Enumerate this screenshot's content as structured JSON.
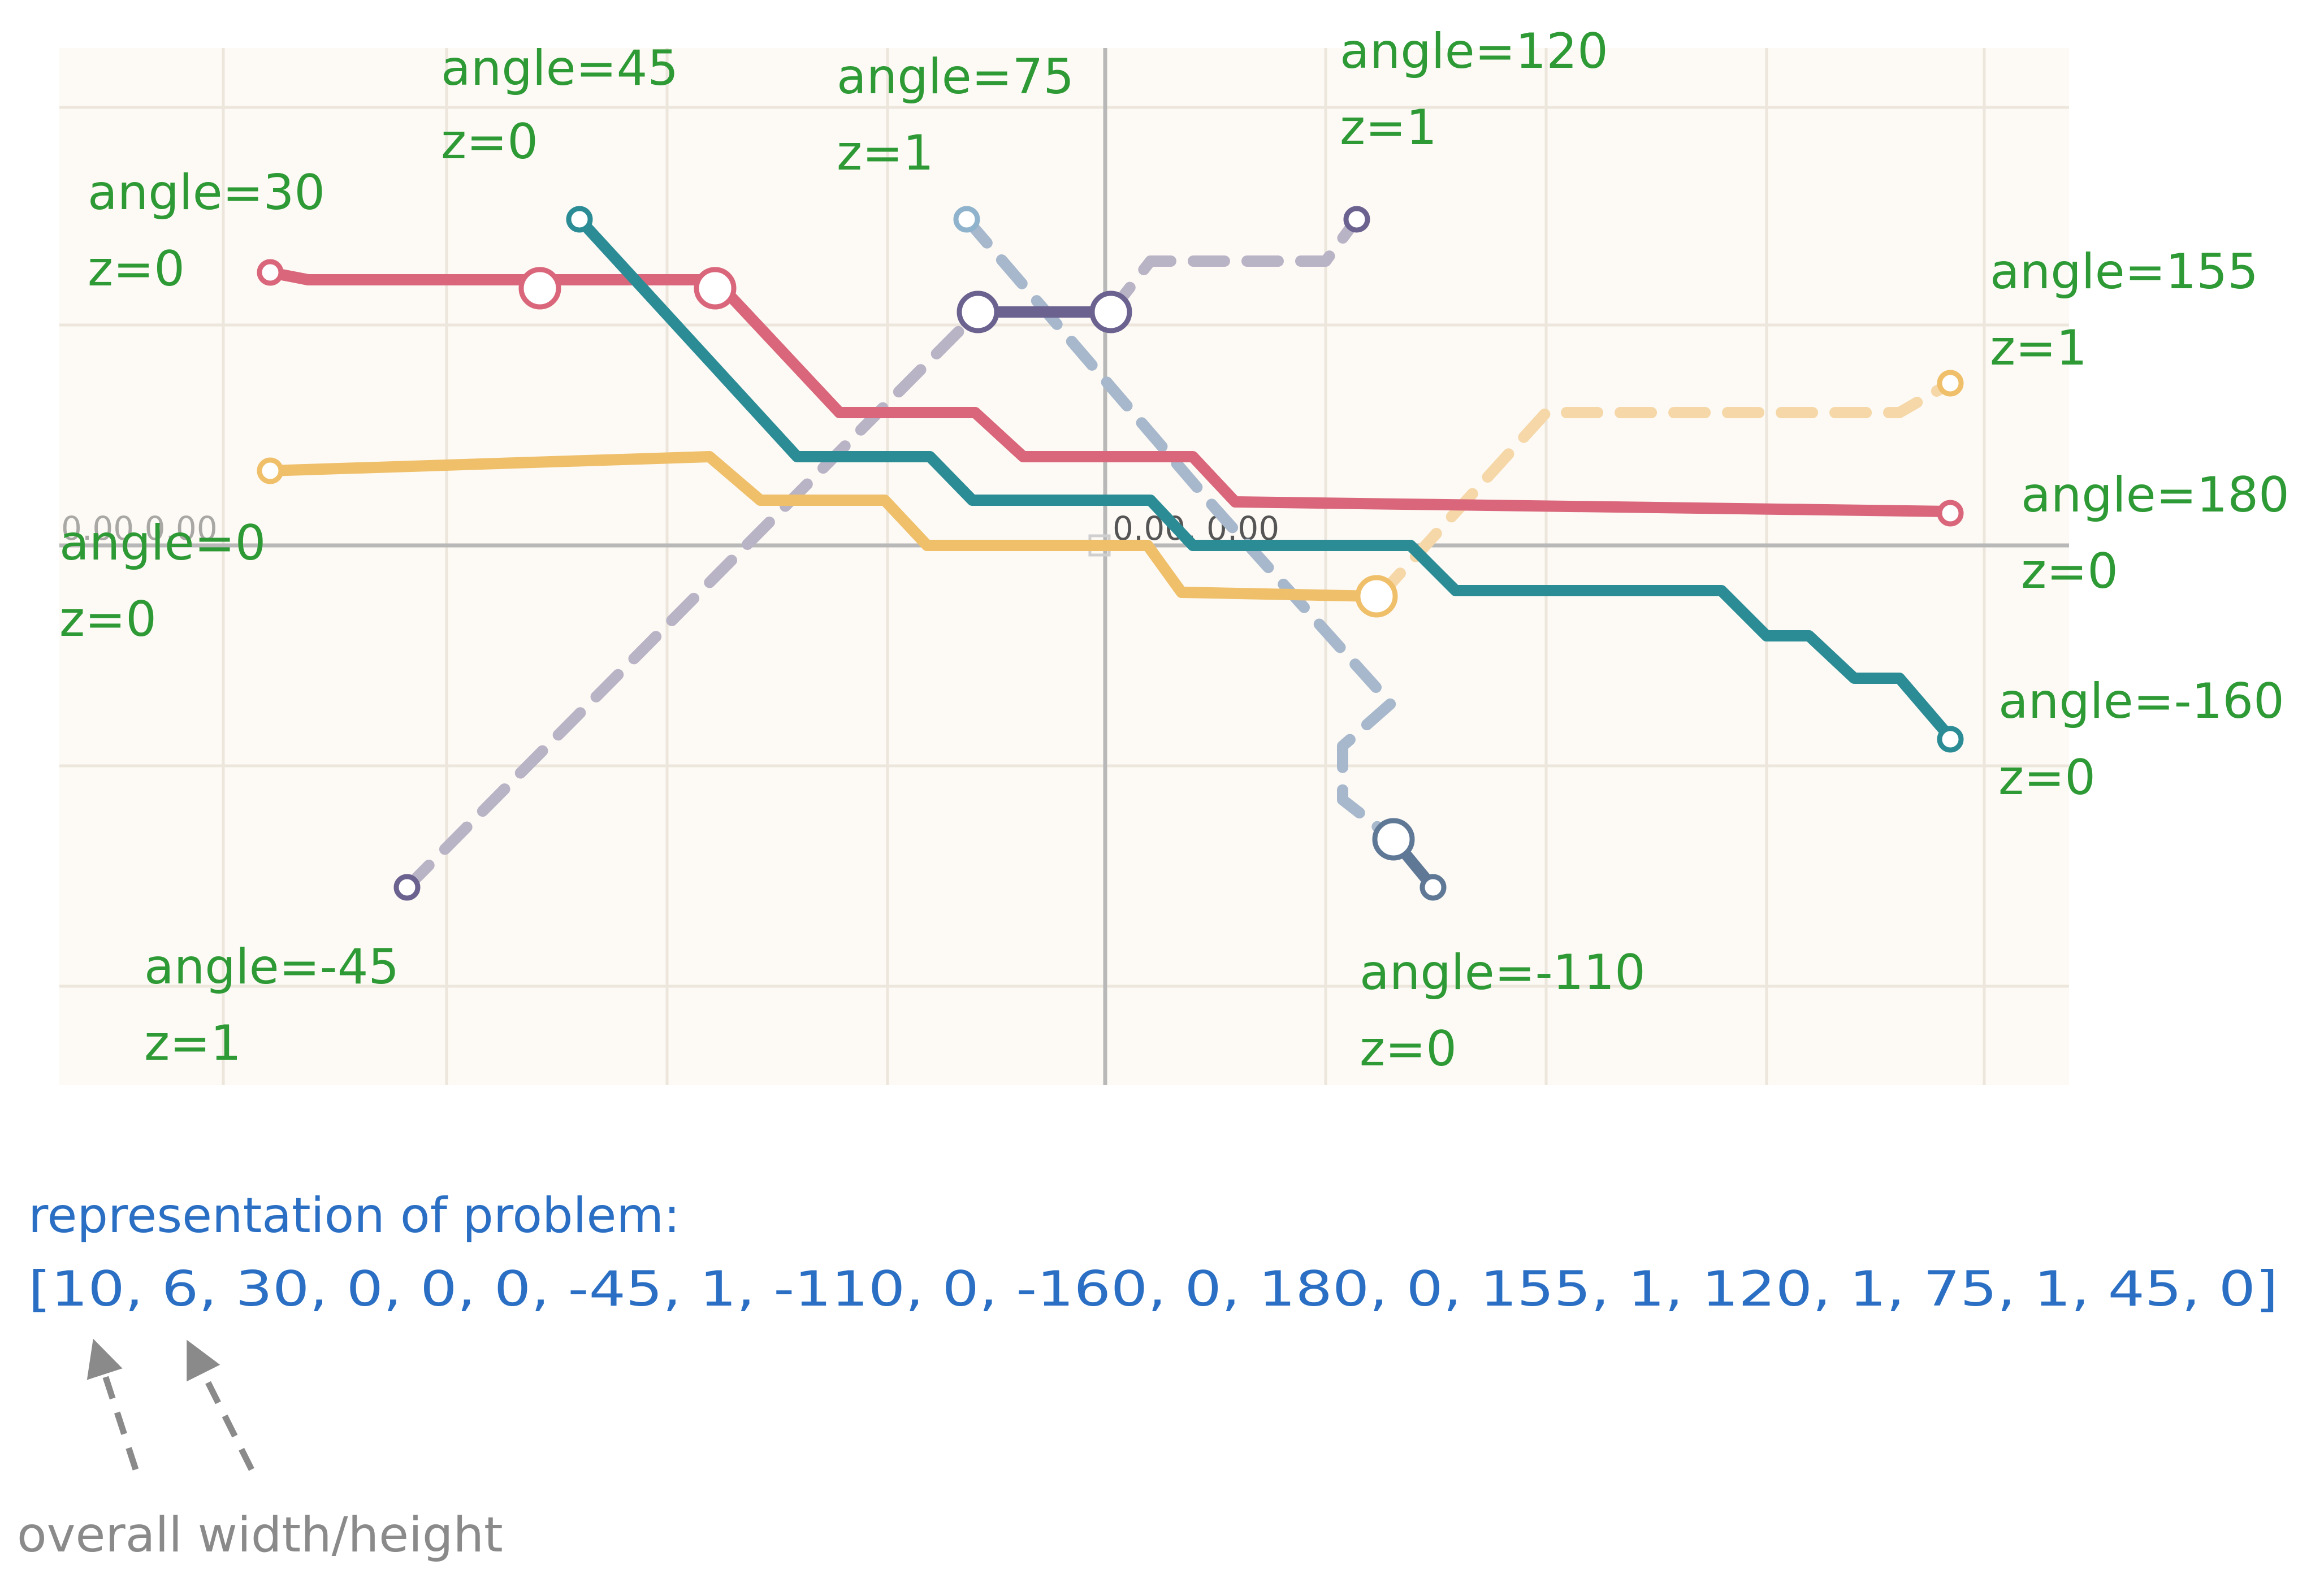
{
  "origin_label": "0.00, 0.00",
  "edge_label": "0.00 0.00",
  "endpoints": [
    {
      "id": "a30",
      "angle_text": "angle=30",
      "z_text": "z=0",
      "color": "#d9667a",
      "style": "solid"
    },
    {
      "id": "a45",
      "angle_text": "angle=45",
      "z_text": "z=0",
      "color": "#2b8c96",
      "style": "solid"
    },
    {
      "id": "a75",
      "angle_text": "angle=75",
      "z_text": "z=1",
      "color": "#a7b8cc",
      "style": "dashed"
    },
    {
      "id": "a120",
      "angle_text": "angle=120",
      "z_text": "z=1",
      "color": "#b9b3c6",
      "style": "dashed"
    },
    {
      "id": "a155",
      "angle_text": "angle=155",
      "z_text": "z=1",
      "color": "#f5d7a8",
      "style": "dashed"
    },
    {
      "id": "a180",
      "angle_text": "angle=180",
      "z_text": "z=0",
      "color": "#d9667a",
      "style": "solid"
    },
    {
      "id": "a-160",
      "angle_text": "angle=-160",
      "z_text": "z=0",
      "color": "#2b8c96",
      "style": "solid"
    },
    {
      "id": "a-110",
      "angle_text": "angle=-110",
      "z_text": "z=0",
      "color": "#5e7896",
      "style": "solid"
    },
    {
      "id": "a-45",
      "angle_text": "angle=-45",
      "z_text": "z=1",
      "color": "#b9b3c6",
      "style": "dashed"
    },
    {
      "id": "a0",
      "angle_text": "angle=0",
      "z_text": "z=0",
      "color": "#efbf6a",
      "style": "solid"
    }
  ],
  "representation": {
    "title": "representation of problem:",
    "array": "[10, 6, 30, 0, 0, 0, -45, 1, -110, 0, -160, 0, 180, 0, 155, 1, 120, 1, 75, 1, 45, 0]"
  },
  "annotation": "overall width/height"
}
